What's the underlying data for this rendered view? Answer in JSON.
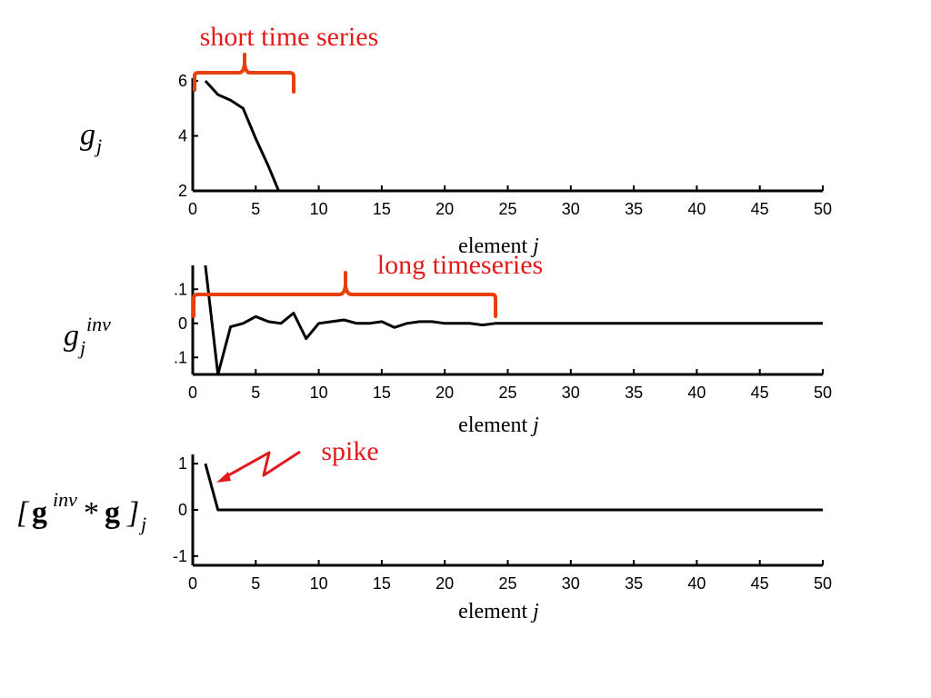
{
  "colors": {
    "line": "#000000",
    "annotation_bracket": "#e8400c",
    "annotation_text": "#e31a1c",
    "axis": "#000000"
  },
  "annotations": {
    "short": "short time series",
    "long": "long timeseries",
    "spike": "spike"
  },
  "row_labels": {
    "top": {
      "base": "g",
      "sub": "j"
    },
    "middle": {
      "base": "g",
      "sub": "j",
      "sup": "inv"
    },
    "bottom": {
      "open": "[",
      "g1": "g",
      "sup": "inv",
      "star": "*",
      "g2": "g",
      "close": "]",
      "sub": "j"
    }
  },
  "chart_data": [
    {
      "type": "line",
      "title": "",
      "xlabel": "element j",
      "ylabel": "g_j",
      "xlim": [
        0,
        50
      ],
      "ylim": [
        2,
        6.1
      ],
      "xticks": [
        "0",
        "5",
        "10",
        "15",
        "20",
        "25",
        "30",
        "35",
        "40",
        "45",
        "50"
      ],
      "yticks": [
        "2",
        "4",
        "6"
      ],
      "series": [
        {
          "x": [
            1,
            2,
            3,
            4,
            5,
            6,
            7
          ],
          "y": [
            6,
            5.5,
            5.3,
            5.0,
            3.9,
            2.9,
            1.8
          ]
        }
      ]
    },
    {
      "type": "line",
      "title": "",
      "xlabel": "element j",
      "ylabel": "g_j^inv",
      "xlim": [
        0,
        50
      ],
      "ylim": [
        -0.15,
        0.17
      ],
      "xticks": [
        "0",
        "5",
        "10",
        "15",
        "20",
        "25",
        "30",
        "35",
        "40",
        "45",
        "50"
      ],
      "yticks": [
        ".1",
        "0",
        ".1"
      ],
      "series": [
        {
          "x": [
            1,
            2,
            3,
            4,
            5,
            6,
            7,
            8,
            9,
            10,
            11,
            12,
            13,
            14,
            15,
            16,
            17,
            18,
            19,
            20,
            21,
            22,
            23,
            24,
            25,
            26,
            27,
            28,
            29,
            30,
            31,
            32,
            33,
            34,
            35,
            36,
            37,
            38,
            39,
            40,
            41,
            42,
            43,
            44,
            45,
            46,
            47,
            48,
            49,
            50
          ],
          "y": [
            0.17,
            -0.15,
            -0.01,
            0.0,
            0.02,
            0.005,
            0.0,
            0.03,
            -0.045,
            0.0,
            0.005,
            0.01,
            0.0,
            0.0,
            0.005,
            -0.012,
            0.0,
            0.005,
            0.005,
            0.0,
            0.0,
            0.0,
            -0.005,
            0.0,
            0,
            0,
            0,
            0,
            0,
            0,
            0,
            0,
            0,
            0,
            0,
            0,
            0,
            0,
            0,
            0,
            0,
            0,
            0,
            0,
            0,
            0,
            0,
            0,
            0,
            0
          ]
        }
      ]
    },
    {
      "type": "line",
      "title": "",
      "xlabel": "element j",
      "ylabel": "[g^inv*g]_j",
      "xlim": [
        0,
        50
      ],
      "ylim": [
        -1.2,
        1.2
      ],
      "xticks": [
        "0",
        "5",
        "10",
        "15",
        "20",
        "25",
        "30",
        "35",
        "40",
        "45",
        "50"
      ],
      "yticks": [
        "1",
        "0",
        "-1"
      ],
      "series": [
        {
          "x": [
            1,
            2,
            50
          ],
          "y": [
            1,
            0,
            0
          ]
        }
      ]
    }
  ]
}
